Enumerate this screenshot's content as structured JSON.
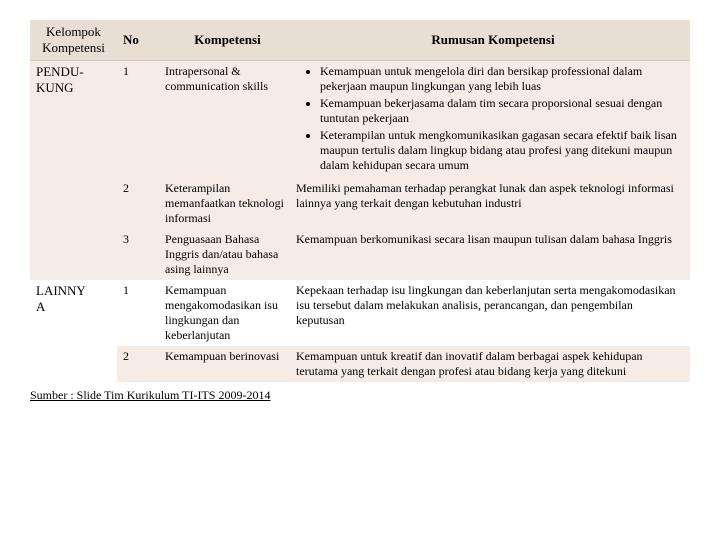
{
  "headers": {
    "kelompok": "Kelompok Kompetensi",
    "no": "No",
    "kompetensi": "Kompetensi",
    "rumusan": "Rumusan Kompetensi"
  },
  "groups": [
    {
      "name": "PENDUKUNG",
      "name_display_top": "PENDU-",
      "name_display_bottom": "KUNG",
      "rows": [
        {
          "no": "1",
          "kompetensi": "Intrapersonal & communication skills",
          "bullets": [
            "Kemampuan untuk mengelola diri dan bersikap professional dalam pekerjaan maupun lingkungan yang lebih luas",
            "Kemampuan bekerjasama dalam tim secara proporsional sesuai dengan tuntutan pekerjaan",
            "Keterampilan untuk mengkomunikasikan gagasan secara efektif baik lisan maupun tertulis dalam lingkup bidang atau profesi yang ditekuni maupun dalam kehidupan secara umum"
          ]
        },
        {
          "no": "2",
          "kompetensi": "Keterampilan memanfaatkan teknologi informasi",
          "text": "Memiliki pemahaman terhadap perangkat lunak dan aspek teknologi informasi lainnya yang terkait dengan kebutuhan industri"
        },
        {
          "no": "3",
          "kompetensi": "Penguasaan Bahasa Inggris dan/atau bahasa asing lainnya",
          "text": "Kemampuan berkomunikasi secara lisan maupun tulisan dalam bahasa Inggris"
        }
      ]
    },
    {
      "name": "LAINNYA",
      "name_display_top": "LAINNY",
      "name_display_bottom": "A",
      "rows": [
        {
          "no": "1",
          "kompetensi": "Kemampuan mengakomodasikan isu lingkungan dan keberlanjutan",
          "text": "Kepekaan terhadap isu lingkungan dan keberlanjutan serta mengakomodasikan isu tersebut dalam melakukan analisis, perancangan, dan pengembilan keputusan"
        },
        {
          "no": "2",
          "kompetensi": "Kemampuan berinovasi",
          "text": "Kemampuan untuk kreatif dan inovatif dalam berbagai aspek kehidupan terutama yang terkait dengan profesi atau bidang kerja yang ditekuni"
        }
      ]
    }
  ],
  "source": "Sumber : Slide Tim Kurikulum TI-ITS 2009-2014",
  "colors": {
    "header_bg": "#e8ded4",
    "row_alt_bg": "#f5ece6",
    "row_norm_bg": "#ffffff"
  }
}
